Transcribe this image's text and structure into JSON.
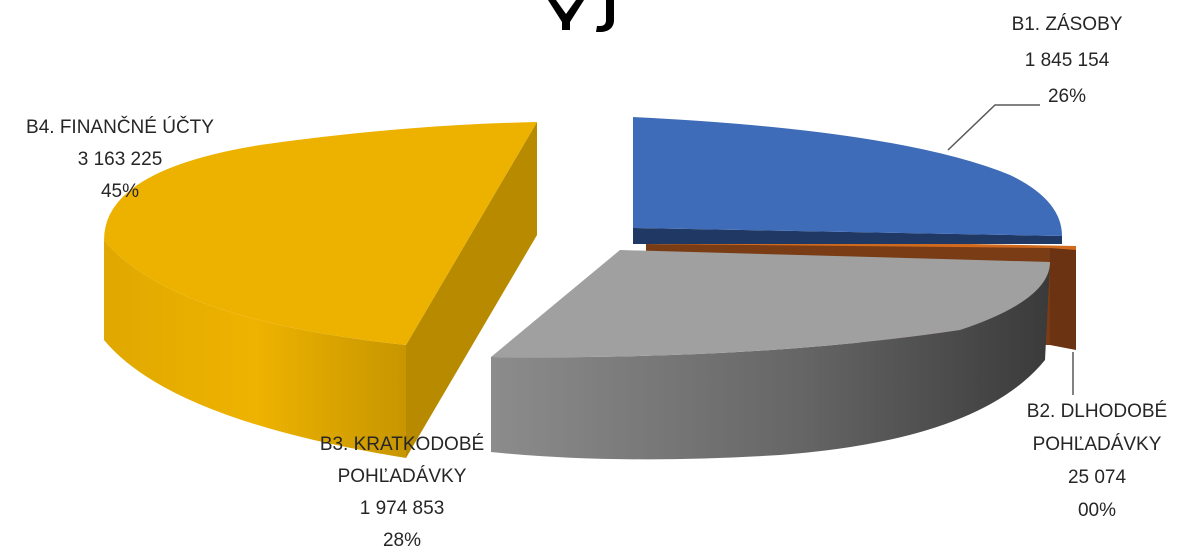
{
  "chart_data": {
    "type": "pie",
    "variant": "3d-exploded",
    "categories": [
      "B1. ZÁSOBY",
      "B2. DLHODOBÉ POHĽADÁVKY",
      "B3. KRATKODOBÉ POHĽADÁVKY",
      "B4. FINANČNÉ ÚČTY"
    ],
    "values": [
      1845154,
      25074,
      1974853,
      3163225
    ],
    "value_labels": [
      "1 845 154",
      "25 074",
      "1 974 853",
      "3 163 225"
    ],
    "percent_labels": [
      "26%",
      "00%",
      "28%",
      "45%"
    ],
    "colors": [
      "#4472c4",
      "#c55a11",
      "#a5a5a5",
      "#f2b800"
    ],
    "legend": "none",
    "title": ""
  }
}
